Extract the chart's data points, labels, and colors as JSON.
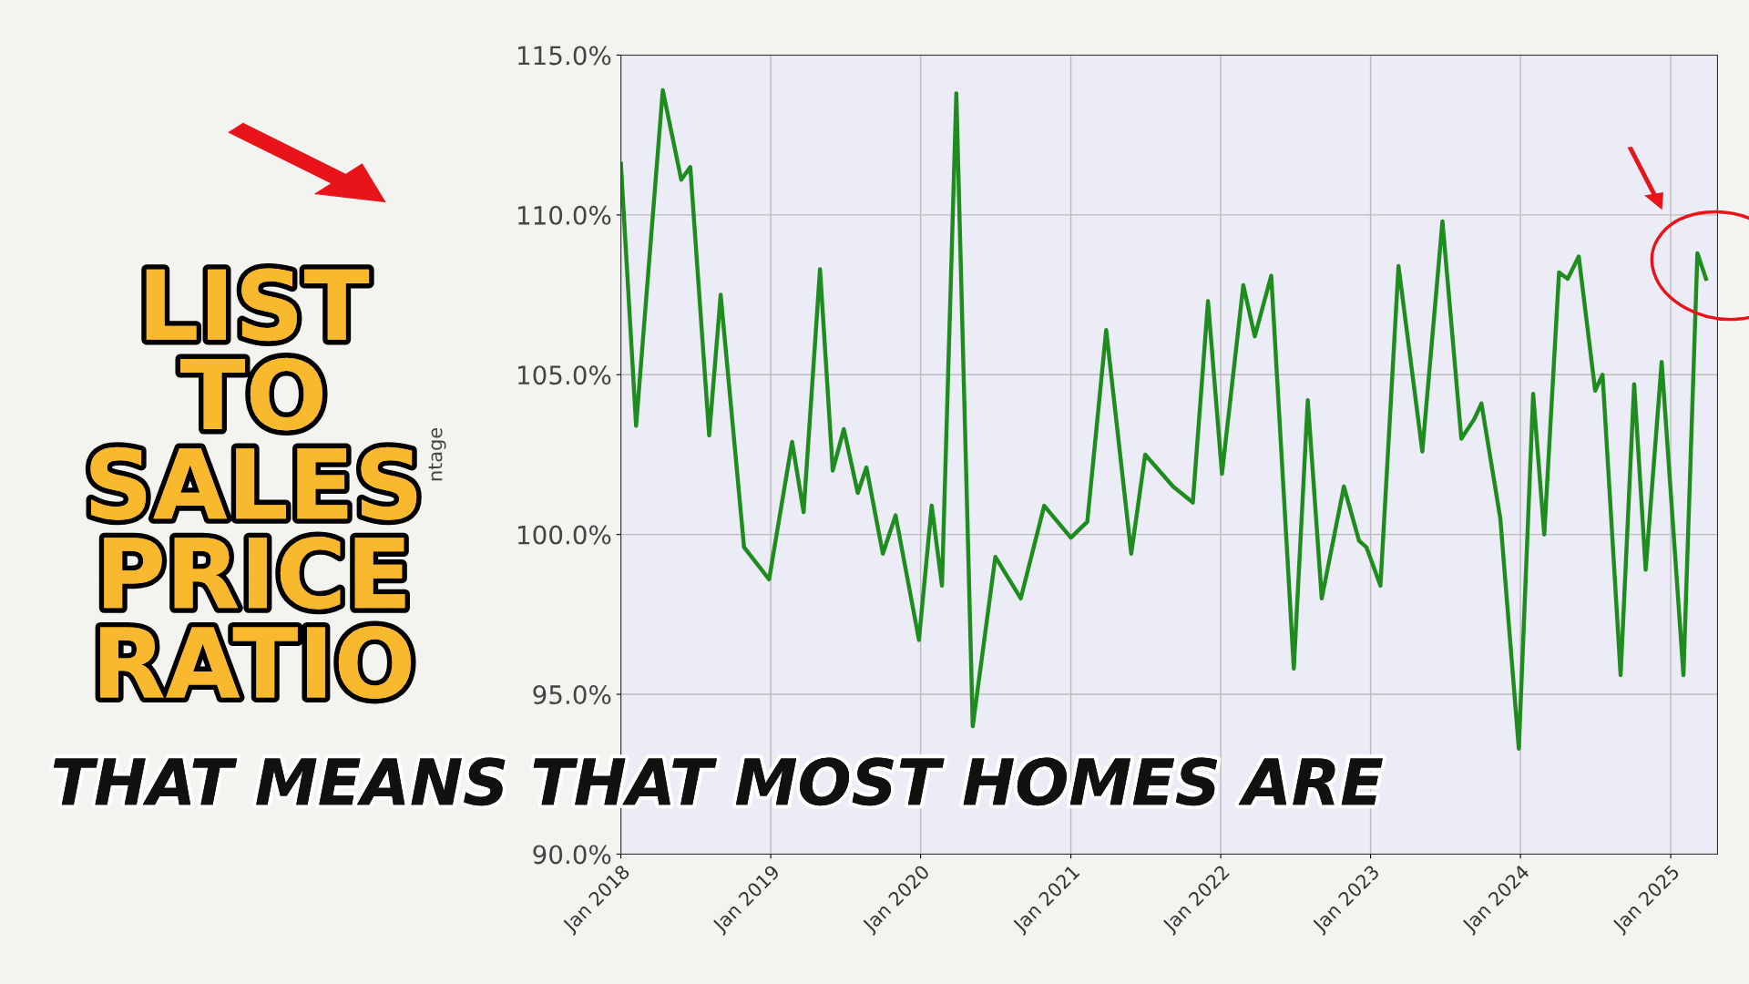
{
  "chart_data": {
    "type": "line",
    "title": "LIST TO SALES PRICE RATIO",
    "ylabel": "ntage",
    "annotations": [
      "THAT MEANS THAT MOST HOMES ARE"
    ],
    "x": [
      "2018-01-01",
      "2018-02-07",
      "2018-04-13",
      "2018-05-28",
      "2018-06-19",
      "2018-08-04",
      "2018-09-01",
      "2018-10-28",
      "2018-12-28",
      "2019-02-22",
      "2019-03-22",
      "2019-05-01",
      "2019-06-01",
      "2019-06-28",
      "2019-08-01",
      "2019-08-22",
      "2019-10-01",
      "2019-11-01",
      "2019-12-28",
      "2020-01-28",
      "2020-02-22",
      "2020-03-28",
      "2020-05-07",
      "2020-07-01",
      "2020-09-01",
      "2020-10-28",
      "2021-01-01",
      "2021-02-10",
      "2021-03-28",
      "2021-05-28",
      "2021-07-01",
      "2021-08-04",
      "2021-09-07",
      "2021-10-25",
      "2021-12-01",
      "2022-01-04",
      "2022-02-25",
      "2022-03-25",
      "2022-05-04",
      "2022-06-28",
      "2022-08-01",
      "2022-09-04",
      "2022-10-28",
      "2022-12-04",
      "2022-12-22",
      "2023-01-25",
      "2023-03-10",
      "2023-05-07",
      "2023-06-25",
      "2023-08-10",
      "2023-09-10",
      "2023-09-28",
      "2023-11-13",
      "2023-12-28",
      "2024-02-01",
      "2024-02-28",
      "2024-04-04",
      "2024-04-25",
      "2024-05-22",
      "2024-07-01",
      "2024-07-19",
      "2024-09-01",
      "2024-10-04",
      "2024-11-01",
      "2024-12-10",
      "2025-02-01",
      "2025-03-07",
      "2025-03-28"
    ],
    "series": [
      {
        "color": "#1e8c1e",
        "values": [
          111.6,
          103.4,
          113.9,
          111.1,
          111.5,
          103.1,
          107.5,
          99.6,
          98.6,
          102.9,
          100.7,
          108.3,
          102.0,
          103.3,
          101.3,
          102.1,
          99.4,
          100.6,
          96.7,
          100.9,
          98.4,
          113.8,
          94.0,
          99.3,
          98.0,
          100.9,
          99.9,
          100.4,
          106.4,
          99.4,
          102.5,
          102.0,
          101.5,
          101.0,
          107.3,
          101.9,
          107.8,
          106.2,
          108.1,
          95.8,
          104.2,
          98.0,
          101.5,
          99.8,
          99.6,
          98.4,
          108.4,
          102.6,
          109.8,
          103.0,
          103.6,
          104.1,
          100.5,
          93.3,
          104.4,
          100.0,
          108.2,
          108.0,
          108.7,
          104.5,
          105.0,
          95.6,
          104.7,
          98.9,
          105.4,
          95.6,
          108.8,
          108.0
        ]
      }
    ],
    "xlim": [
      "2018-01-01",
      "2025-04-25"
    ],
    "xticks": [
      {
        "value": "2018-01-01",
        "label": "Jan 2018"
      },
      {
        "value": "2019-01-01",
        "label": "Jan 2019"
      },
      {
        "value": "2020-01-01",
        "label": "Jan 2020"
      },
      {
        "value": "2021-01-01",
        "label": "Jan 2021"
      },
      {
        "value": "2022-01-01",
        "label": "Jan 2022"
      },
      {
        "value": "2023-01-01",
        "label": "Jan 2023"
      },
      {
        "value": "2024-01-01",
        "label": "Jan 2024"
      },
      {
        "value": "2025-01-01",
        "label": "Jan 2025"
      }
    ],
    "ylim": [
      90,
      115
    ],
    "yticks": [
      {
        "value": 90,
        "label": "90.0%"
      },
      {
        "value": 95,
        "label": "95.0%"
      },
      {
        "value": 100,
        "label": "100.0%"
      },
      {
        "value": 105,
        "label": "105.0%"
      },
      {
        "value": 110,
        "label": "110.0%"
      },
      {
        "value": 115,
        "label": "115.0%"
      }
    ],
    "grid": true,
    "marker": "none",
    "line_style": "solid",
    "legend": false
  }
}
